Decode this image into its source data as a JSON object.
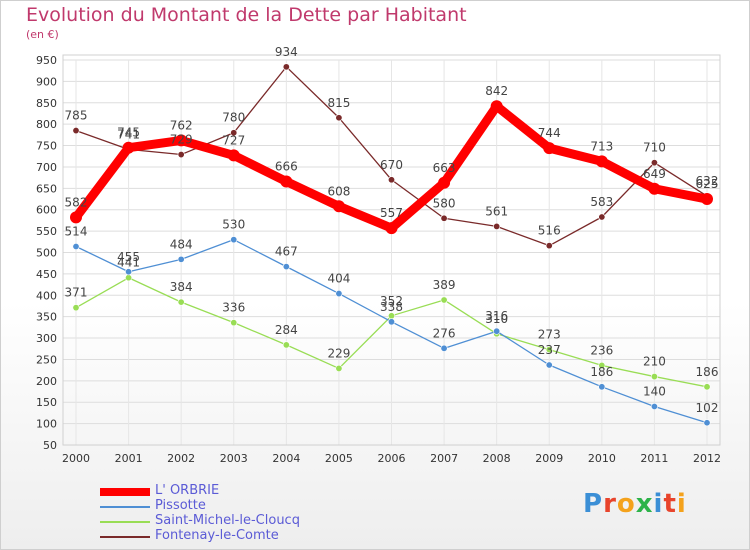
{
  "header": {
    "title": "Evolution du Montant de la Dette par Habitant",
    "unit": "(en €)"
  },
  "brand": {
    "text": "Proxiti",
    "colors": [
      "#3b8fd6",
      "#e8442c",
      "#f4a21c",
      "#2db34a",
      "#3b8fd6",
      "#e8442c",
      "#f4a21c"
    ]
  },
  "chart_data": {
    "type": "line",
    "title": "Evolution du Montant de la Dette par Habitant",
    "ylabel": "(en €)",
    "xlabel": "",
    "ylim": [
      50,
      950
    ],
    "grid": true,
    "legend_position": "bottom-left",
    "yticks": [
      50,
      100,
      150,
      200,
      250,
      300,
      350,
      400,
      450,
      500,
      550,
      600,
      650,
      700,
      750,
      800,
      850,
      900,
      950
    ],
    "categories": [
      "2000",
      "2001",
      "2002",
      "2003",
      "2004",
      "2005",
      "2006",
      "2007",
      "2008",
      "2009",
      "2010",
      "2011",
      "2012"
    ],
    "series": [
      {
        "name": "L' ORBRIE",
        "color": "#ff0000",
        "values": [
          582,
          745,
          762,
          727,
          666,
          608,
          557,
          663,
          842,
          744,
          713,
          649,
          625
        ]
      },
      {
        "name": "Pissotte",
        "color": "#4f8fd4",
        "values": [
          514,
          455,
          484,
          530,
          467,
          404,
          338,
          276,
          316,
          237,
          186,
          140,
          102
        ]
      },
      {
        "name": "Saint-Michel-le-Cloucq",
        "color": "#99dd55",
        "values": [
          371,
          441,
          384,
          336,
          284,
          229,
          352,
          389,
          310,
          273,
          236,
          210,
          186
        ]
      },
      {
        "name": "Fontenay-le-Comte",
        "color": "#7a2a2a",
        "values": [
          785,
          741,
          729,
          780,
          934,
          815,
          670,
          580,
          561,
          516,
          583,
          710,
          632
        ]
      }
    ]
  }
}
